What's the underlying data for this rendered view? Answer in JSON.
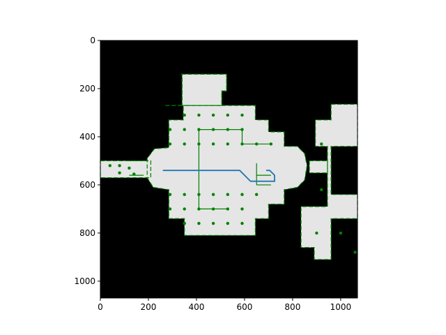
{
  "chart_data": {
    "type": "map",
    "title": "",
    "xlabel": "",
    "ylabel": "",
    "xlim": [
      0,
      1070
    ],
    "ylim": [
      1070,
      0
    ],
    "x_ticks": [
      "0",
      "200",
      "400",
      "600",
      "800",
      "1000"
    ],
    "y_ticks": [
      "0",
      "200",
      "400",
      "600",
      "800",
      "1000"
    ],
    "x_tick_values": [
      0,
      200,
      400,
      600,
      800,
      1000
    ],
    "y_tick_values": [
      0,
      200,
      400,
      600,
      800,
      1000
    ],
    "grid": false,
    "colors": {
      "background": "#000000",
      "free_space": "#e5e5e5",
      "obstacles": "#008000",
      "path": "#1f77b4"
    },
    "free_space_regions": [
      [
        [
          0,
          500
        ],
        [
          210,
          500
        ],
        [
          210,
          570
        ],
        [
          0,
          570
        ]
      ],
      [
        [
          340,
          140
        ],
        [
          525,
          140
        ],
        [
          525,
          150
        ],
        [
          525,
          210
        ],
        [
          505,
          210
        ],
        [
          505,
          270
        ],
        [
          340,
          270
        ],
        [
          340,
          200
        ],
        [
          340,
          140
        ]
      ],
      [
        [
          270,
          270
        ],
        [
          645,
          270
        ],
        [
          645,
          330
        ],
        [
          700,
          330
        ],
        [
          700,
          380
        ],
        [
          765,
          380
        ],
        [
          765,
          440
        ],
        [
          820,
          440
        ],
        [
          850,
          470
        ],
        [
          860,
          520
        ],
        [
          850,
          580
        ],
        [
          820,
          610
        ],
        [
          765,
          620
        ],
        [
          765,
          680
        ],
        [
          700,
          680
        ],
        [
          700,
          740
        ],
        [
          645,
          740
        ],
        [
          645,
          810
        ],
        [
          350,
          810
        ],
        [
          350,
          740
        ],
        [
          285,
          740
        ],
        [
          285,
          620
        ],
        [
          220,
          610
        ],
        [
          195,
          570
        ],
        [
          195,
          490
        ],
        [
          225,
          450
        ],
        [
          285,
          445
        ],
        [
          285,
          330
        ],
        [
          345,
          330
        ],
        [
          345,
          270
        ]
      ],
      [
        [
          335,
          140
        ],
        [
          525,
          140
        ],
        [
          525,
          210
        ],
        [
          505,
          210
        ],
        [
          505,
          270
        ],
        [
          340,
          270
        ],
        [
          340,
          210
        ],
        [
          340,
          140
        ]
      ],
      [
        [
          960,
          265
        ],
        [
          1070,
          265
        ],
        [
          1070,
          440
        ],
        [
          960,
          440
        ],
        [
          960,
          640
        ],
        [
          1070,
          640
        ],
        [
          1070,
          740
        ],
        [
          960,
          740
        ],
        [
          960,
          910
        ],
        [
          890,
          910
        ],
        [
          890,
          860
        ],
        [
          835,
          860
        ],
        [
          835,
          690
        ],
        [
          945,
          690
        ],
        [
          945,
          440
        ],
        [
          895,
          440
        ],
        [
          895,
          330
        ],
        [
          960,
          330
        ]
      ],
      [
        [
          870,
          500
        ],
        [
          945,
          500
        ],
        [
          945,
          550
        ],
        [
          870,
          550
        ]
      ]
    ],
    "obstacle_markers": [
      [
        350,
        310
      ],
      [
        410,
        310
      ],
      [
        470,
        310
      ],
      [
        530,
        310
      ],
      [
        590,
        310
      ],
      [
        350,
        370
      ],
      [
        410,
        370
      ],
      [
        470,
        370
      ],
      [
        530,
        370
      ],
      [
        590,
        370
      ],
      [
        350,
        430
      ],
      [
        410,
        430
      ],
      [
        470,
        430
      ],
      [
        530,
        430
      ],
      [
        590,
        430
      ],
      [
        650,
        430
      ],
      [
        710,
        430
      ],
      [
        350,
        640
      ],
      [
        410,
        640
      ],
      [
        470,
        640
      ],
      [
        530,
        640
      ],
      [
        590,
        640
      ],
      [
        650,
        640
      ],
      [
        350,
        700
      ],
      [
        410,
        700
      ],
      [
        470,
        700
      ],
      [
        530,
        700
      ],
      [
        590,
        700
      ],
      [
        350,
        760
      ],
      [
        410,
        760
      ],
      [
        470,
        760
      ],
      [
        530,
        760
      ],
      [
        590,
        760
      ],
      [
        290,
        370
      ],
      [
        290,
        430
      ],
      [
        290,
        640
      ],
      [
        290,
        700
      ],
      [
        40,
        520
      ],
      [
        80,
        520
      ],
      [
        120,
        530
      ],
      [
        80,
        550
      ],
      [
        140,
        555
      ],
      [
        920,
        430
      ],
      [
        920,
        620
      ],
      [
        900,
        800
      ],
      [
        1000,
        800
      ],
      [
        1060,
        880
      ]
    ],
    "path": [
      [
        260,
        540
      ],
      [
        580,
        540
      ],
      [
        625,
        585
      ],
      [
        725,
        585
      ],
      [
        725,
        560
      ],
      [
        705,
        540
      ],
      [
        690,
        540
      ]
    ]
  }
}
